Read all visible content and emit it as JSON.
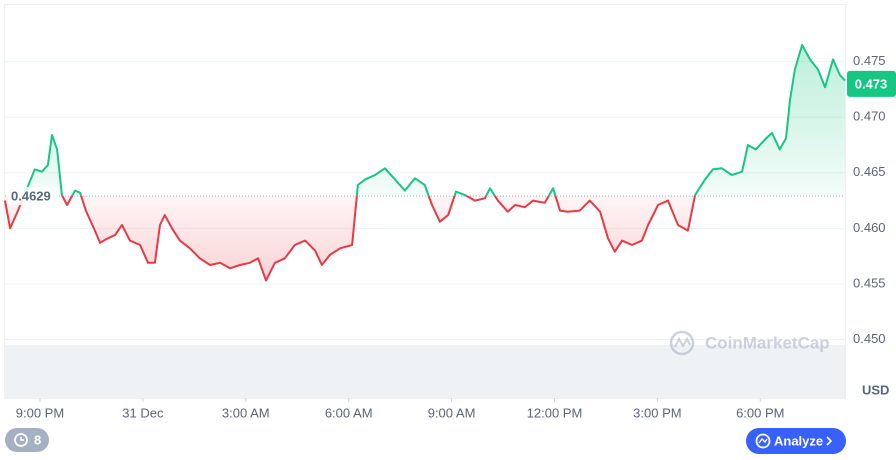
{
  "chart_data": {
    "type": "line",
    "x": [
      -1.02,
      -0.87,
      -0.64,
      -0.15,
      0.06,
      0.23,
      0.35,
      0.5,
      0.64,
      0.79,
      1.02,
      1.17,
      1.34,
      1.6,
      1.75,
      1.98,
      2.19,
      2.39,
      2.62,
      2.92,
      3.15,
      3.35,
      3.5,
      3.64,
      3.85,
      4.08,
      4.37,
      4.66,
      4.96,
      5.25,
      5.54,
      5.83,
      6.12,
      6.36,
      6.59,
      6.85,
      7.14,
      7.43,
      7.73,
      8.02,
      8.22,
      8.45,
      8.75,
      9.1,
      9.27,
      9.48,
      9.77,
      10.06,
      10.35,
      10.64,
      10.93,
      11.22,
      11.43,
      11.66,
      11.9,
      12.13,
      12.39,
      12.68,
      12.97,
      13.12,
      13.35,
      13.64,
      13.85,
      14.14,
      14.37,
      14.72,
      14.96,
      15.16,
      15.39,
      15.74,
      16.03,
      16.33,
      16.56,
      16.76,
      16.97,
      17.26,
      17.55,
      17.73,
      18.02,
      18.31,
      18.6,
      18.89,
      19.1,
      19.39,
      19.62,
      19.88,
      20.17,
      20.47,
      20.64,
      20.87,
      21.14,
      21.34,
      21.57,
      21.75,
      21.87,
      22.01,
      22.22,
      22.45,
      22.68,
      22.89,
      23.12,
      23.32,
      23.47
    ],
    "values": [
      0.4625,
      0.46,
      0.4616,
      0.4653,
      0.4651,
      0.4657,
      0.4684,
      0.4671,
      0.463,
      0.4621,
      0.4634,
      0.4632,
      0.4616,
      0.4598,
      0.4587,
      0.4591,
      0.4594,
      0.4603,
      0.4589,
      0.4585,
      0.4569,
      0.4569,
      0.4603,
      0.4612,
      0.46,
      0.4589,
      0.4582,
      0.4573,
      0.4567,
      0.4569,
      0.4564,
      0.4567,
      0.4569,
      0.4573,
      0.4553,
      0.4569,
      0.4573,
      0.4585,
      0.4589,
      0.458,
      0.4567,
      0.4576,
      0.4582,
      0.4585,
      0.4639,
      0.4644,
      0.4648,
      0.4654,
      0.4644,
      0.4634,
      0.4645,
      0.4639,
      0.4621,
      0.4606,
      0.4612,
      0.4633,
      0.463,
      0.4625,
      0.4627,
      0.4636,
      0.4625,
      0.4615,
      0.4621,
      0.4619,
      0.4625,
      0.4623,
      0.4636,
      0.4616,
      0.4615,
      0.4616,
      0.4625,
      0.4615,
      0.4591,
      0.4579,
      0.4589,
      0.4585,
      0.4589,
      0.4603,
      0.4621,
      0.4625,
      0.4603,
      0.4598,
      0.463,
      0.4644,
      0.4653,
      0.4654,
      0.4648,
      0.4651,
      0.4675,
      0.4671,
      0.468,
      0.4686,
      0.4671,
      0.4681,
      0.4716,
      0.4743,
      0.4765,
      0.4752,
      0.4743,
      0.4727,
      0.4752,
      0.4738,
      0.4733
    ],
    "color_up": "#16c784",
    "color_down": "#ea3943",
    "baseline": 0.4629,
    "current_price": 0.473,
    "xlim": [
      -1.02,
      23.47
    ],
    "xticks": [
      {
        "value": 0,
        "label": "9:00 PM"
      },
      {
        "value": 3,
        "label": "31 Dec"
      },
      {
        "value": 6,
        "label": "3:00 AM"
      },
      {
        "value": 9,
        "label": "6:00 AM"
      },
      {
        "value": 12,
        "label": "9:00 AM"
      },
      {
        "value": 15,
        "label": "12:00 PM"
      },
      {
        "value": 18,
        "label": "3:00 PM"
      },
      {
        "value": 21,
        "label": "6:00 PM"
      }
    ],
    "ylim": [
      0.4495,
      0.4801
    ],
    "yticks": [
      {
        "value": 0.45,
        "label": "0.450"
      },
      {
        "value": 0.455,
        "label": "0.455"
      },
      {
        "value": 0.46,
        "label": "0.460"
      },
      {
        "value": 0.465,
        "label": "0.465"
      },
      {
        "value": 0.47,
        "label": "0.470"
      },
      {
        "value": 0.475,
        "label": "0.475"
      }
    ],
    "grid": true,
    "y_axis_label": "USD",
    "watermark": "CoinMarketCap"
  },
  "controls": {
    "history_count": "8",
    "analyze": "Analyze"
  }
}
